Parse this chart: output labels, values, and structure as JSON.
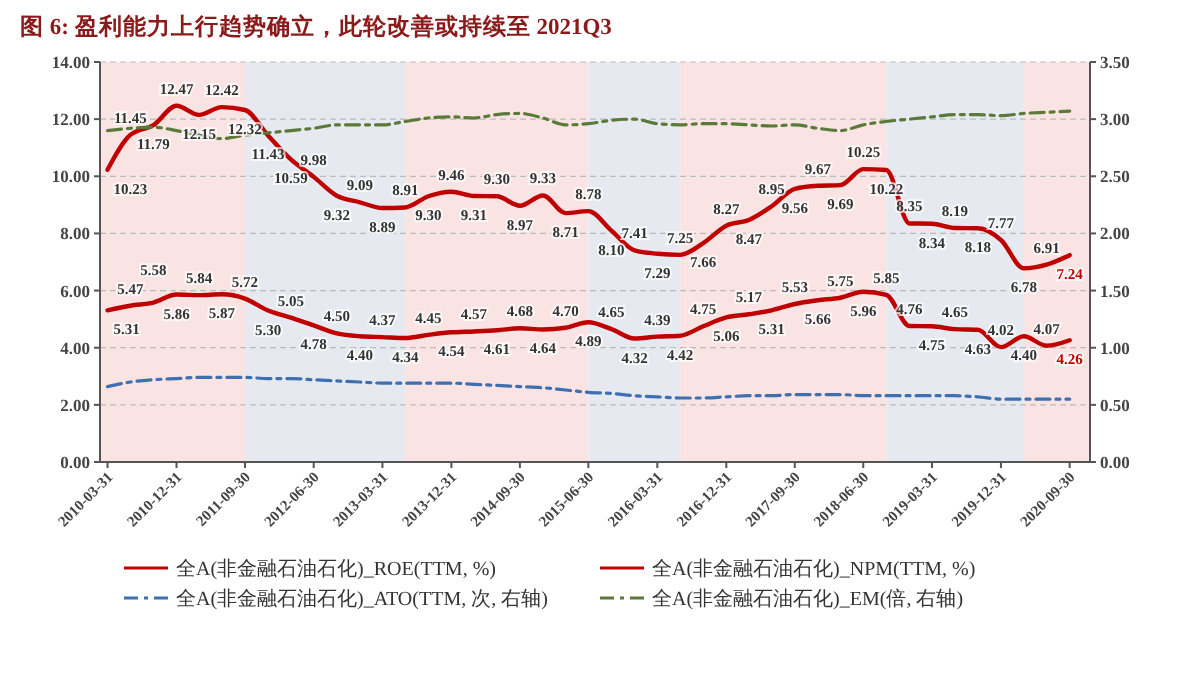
{
  "chart_data": {
    "type": "line",
    "title": "图 6: 盈利能力上行趋势确立，此轮改善或持续至 2021Q3",
    "x": [
      "2010-03-31",
      "2010-06-30",
      "2010-09-30",
      "2010-12-31",
      "2011-03-31",
      "2011-06-30",
      "2011-09-30",
      "2011-12-31",
      "2012-03-31",
      "2012-06-30",
      "2012-09-30",
      "2012-12-31",
      "2013-03-31",
      "2013-06-30",
      "2013-09-30",
      "2013-12-31",
      "2014-03-31",
      "2014-06-30",
      "2014-09-30",
      "2014-12-31",
      "2015-03-31",
      "2015-06-30",
      "2015-09-30",
      "2015-12-31",
      "2016-03-31",
      "2016-06-30",
      "2016-09-30",
      "2016-12-31",
      "2017-03-31",
      "2017-06-30",
      "2017-09-30",
      "2017-12-31",
      "2018-03-31",
      "2018-06-30",
      "2018-09-30",
      "2018-12-31",
      "2019-03-31",
      "2019-06-30",
      "2019-09-30",
      "2019-12-31",
      "2020-03-31",
      "2020-06-30",
      "2020-09-30"
    ],
    "series": [
      {
        "name": "全A(非金融石油石化)_ROE(TTM, %)",
        "color": "#c00000",
        "line_style": "solid",
        "values": [
          10.23,
          11.45,
          11.79,
          12.47,
          12.15,
          12.42,
          12.32,
          11.43,
          10.59,
          9.98,
          9.32,
          9.09,
          8.89,
          8.91,
          9.3,
          9.46,
          9.31,
          9.3,
          8.97,
          9.33,
          8.71,
          8.78,
          8.1,
          7.41,
          7.29,
          7.25,
          7.66,
          8.27,
          8.47,
          8.95,
          9.56,
          9.67,
          9.69,
          10.25,
          10.22,
          8.35,
          8.34,
          8.19,
          8.18,
          7.77,
          6.78,
          6.91,
          7.24
        ],
        "value_labels": [
          "10.23",
          "11.45",
          "11.79",
          "12.47",
          "12.15",
          "12.42",
          "12.32",
          "11.43",
          "10.59",
          "9.98",
          "9.32",
          "9.09",
          "8.89",
          "8.91",
          "9.30",
          "9.46",
          "9.31",
          "9.30",
          "8.97",
          "9.33",
          "8.71",
          "8.78",
          "8.10",
          "7.41",
          "7.29",
          "7.25",
          "7.66",
          "8.27",
          "8.47",
          "8.95",
          "9.56",
          "9.67",
          "9.69",
          "10.25",
          "10.22",
          "8.35",
          "8.34",
          "8.19",
          "8.18",
          "7.77",
          "6.78",
          "6.91",
          "7.24"
        ]
      },
      {
        "name": "全A(非金融石油石化)_NPM(TTM, %)",
        "color": "#c00000",
        "line_style": "solid",
        "values": [
          5.31,
          5.47,
          5.58,
          5.86,
          5.84,
          5.87,
          5.72,
          5.3,
          5.05,
          4.78,
          4.5,
          4.4,
          4.37,
          4.34,
          4.45,
          4.54,
          4.57,
          4.61,
          4.68,
          4.64,
          4.7,
          4.89,
          4.65,
          4.32,
          4.39,
          4.42,
          4.75,
          5.06,
          5.17,
          5.31,
          5.53,
          5.66,
          5.75,
          5.96,
          5.85,
          4.76,
          4.75,
          4.65,
          4.63,
          4.02,
          4.4,
          4.07,
          4.26
        ],
        "value_labels": [
          "5.31",
          "5.47",
          "5.58",
          "5.86",
          "5.84",
          "5.87",
          "5.72",
          "5.30",
          "5.05",
          "4.78",
          "4.50",
          "4.40",
          "4.37",
          "4.34",
          "4.45",
          "4.54",
          "4.57",
          "4.61",
          "4.68",
          "4.64",
          "4.70",
          "4.89",
          "4.65",
          "4.32",
          "4.39",
          "4.42",
          "4.75",
          "5.06",
          "5.17",
          "5.31",
          "5.53",
          "5.66",
          "5.75",
          "5.96",
          "5.85",
          "4.76",
          "4.75",
          "4.65",
          "4.63",
          "4.02",
          "4.40",
          "4.07",
          "4.26"
        ]
      },
      {
        "name": "全A(非金融石油石化)_ATO(TTM, 次, 右轴)",
        "color": "#3e6fb0",
        "line_style": "dashed",
        "axis": "y2",
        "values": [
          0.66,
          0.7,
          0.72,
          0.73,
          0.74,
          0.74,
          0.74,
          0.73,
          0.73,
          0.72,
          0.71,
          0.7,
          0.69,
          0.69,
          0.69,
          0.69,
          0.68,
          0.67,
          0.66,
          0.65,
          0.63,
          0.61,
          0.6,
          0.58,
          0.57,
          0.56,
          0.56,
          0.57,
          0.58,
          0.58,
          0.59,
          0.59,
          0.59,
          0.58,
          0.58,
          0.58,
          0.58,
          0.58,
          0.57,
          0.55,
          0.55,
          0.55,
          0.55
        ]
      },
      {
        "name": "全A(非金融石油石化)_EM(倍, 右轴)",
        "color": "#5a7a3a",
        "line_style": "dashed",
        "axis": "y2",
        "values": [
          2.9,
          2.92,
          2.93,
          2.9,
          2.86,
          2.83,
          2.86,
          2.88,
          2.9,
          2.92,
          2.95,
          2.95,
          2.95,
          2.98,
          3.01,
          3.02,
          3.01,
          3.04,
          3.05,
          3.01,
          2.95,
          2.96,
          2.99,
          3.0,
          2.96,
          2.95,
          2.96,
          2.96,
          2.95,
          2.94,
          2.95,
          2.92,
          2.9,
          2.95,
          2.98,
          3.0,
          3.02,
          3.04,
          3.04,
          3.03,
          3.05,
          3.06,
          3.07
        ]
      }
    ],
    "xlim": [
      "2010-03-01",
      "2020-12-20"
    ],
    "xticks": [
      "2010-03-31",
      "2010-12-31",
      "2011-09-30",
      "2012-06-30",
      "2013-03-31",
      "2013-12-31",
      "2014-09-30",
      "2015-06-30",
      "2016-03-31",
      "2016-12-31",
      "2017-09-30",
      "2018-06-30",
      "2019-03-31",
      "2019-12-31",
      "2020-09-30"
    ],
    "ylim": [
      0,
      14
    ],
    "yticks": [
      {
        "value": 0,
        "label": "0.00"
      },
      {
        "value": 2,
        "label": "2.00"
      },
      {
        "value": 4,
        "label": "4.00"
      },
      {
        "value": 6,
        "label": "6.00"
      },
      {
        "value": 8,
        "label": "8.00"
      },
      {
        "value": 10,
        "label": "10.00"
      },
      {
        "value": 12,
        "label": "12.00"
      },
      {
        "value": 14,
        "label": "14.00"
      }
    ],
    "y2lim": [
      0,
      3.5
    ],
    "y2ticks": [
      {
        "value": 0,
        "label": "0.00"
      },
      {
        "value": 0.5,
        "label": "0.50"
      },
      {
        "value": 1,
        "label": "1.00"
      },
      {
        "value": 1.5,
        "label": "1.50"
      },
      {
        "value": 2,
        "label": "2.00"
      },
      {
        "value": 2.5,
        "label": "2.50"
      },
      {
        "value": 3,
        "label": "3.00"
      },
      {
        "value": 3.5,
        "label": "3.50"
      }
    ],
    "bands": [
      {
        "axis": "x",
        "from": "2010-03-01",
        "to": "2011-09-30",
        "color": "#fae3e3"
      },
      {
        "axis": "x",
        "from": "2011-09-30",
        "to": "2013-06-30",
        "color": "#e6e9f0"
      },
      {
        "axis": "x",
        "from": "2013-06-30",
        "to": "2015-06-30",
        "color": "#fae3e3"
      },
      {
        "axis": "x",
        "from": "2015-06-30",
        "to": "2016-06-30",
        "color": "#e6e9f0"
      },
      {
        "axis": "x",
        "from": "2016-06-30",
        "to": "2018-09-30",
        "color": "#fae3e3"
      },
      {
        "axis": "x",
        "from": "2018-09-30",
        "to": "2020-03-31",
        "color": "#e6e9f0"
      },
      {
        "axis": "x",
        "from": "2020-03-31",
        "to": "2020-12-20",
        "color": "#fae3e3"
      }
    ],
    "grid": "y",
    "legend": "bottom"
  }
}
